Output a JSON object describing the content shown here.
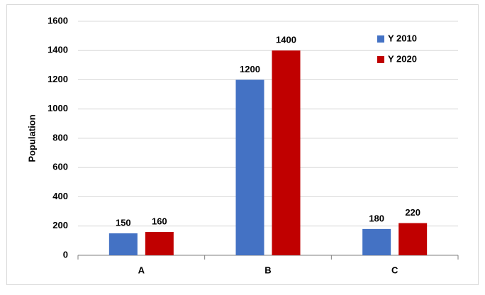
{
  "chart_data": {
    "type": "bar",
    "y_label": "Population",
    "categories": [
      "A",
      "B",
      "C"
    ],
    "series": [
      {
        "name": "Y 2010",
        "color": "#4472c4",
        "values": [
          150,
          1200,
          180
        ]
      },
      {
        "name": "Y 2020",
        "color": "#c00000",
        "values": [
          160,
          1400,
          220
        ]
      }
    ],
    "ylim": [
      0,
      1600
    ],
    "yticks": [
      0,
      200,
      400,
      600,
      800,
      1000,
      1200,
      1400,
      1600
    ],
    "grid": true,
    "legend": "upper right"
  }
}
